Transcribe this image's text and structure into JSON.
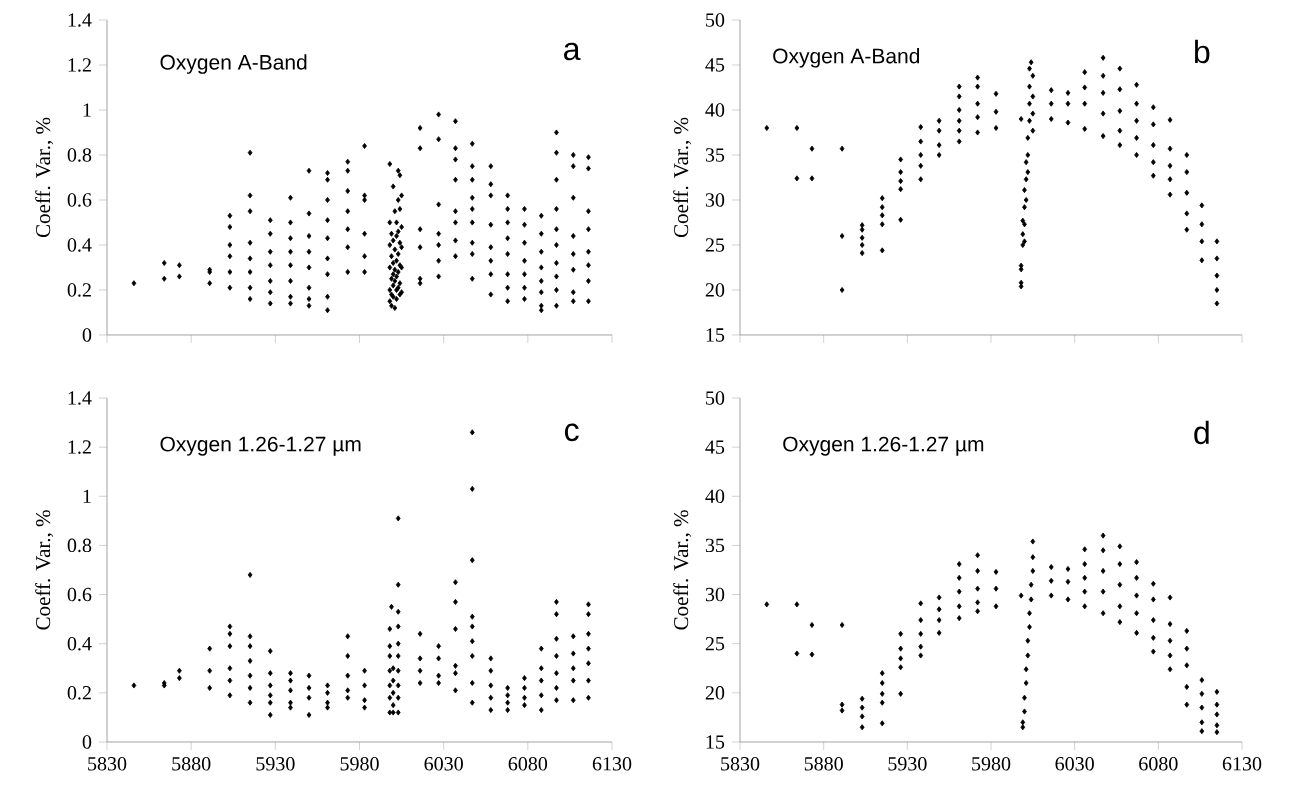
{
  "chart_data": [
    {
      "type": "scatter",
      "title": "Oxygen A-Band",
      "annotations": [
        "a"
      ],
      "ylabel": "Coeff. Var., %",
      "xlim": [
        5830,
        6130
      ],
      "xticks": [
        5830,
        5880,
        5930,
        5980,
        6030,
        6080,
        6130
      ],
      "ylim": [
        0,
        1.4
      ],
      "yticks": [
        0,
        0.2,
        0.4,
        0.6,
        0.8,
        1,
        1.2,
        1.4
      ],
      "tick_labels": "y",
      "marker": "diamond",
      "color": "#000000",
      "x": [
        5846,
        5864,
        5864,
        5873,
        5873,
        5891,
        5891,
        5891,
        5903,
        5903,
        5903,
        5903,
        5903,
        5903,
        5915,
        5915,
        5915,
        5915,
        5915,
        5915,
        5915,
        5915,
        5927,
        5927,
        5927,
        5927,
        5927,
        5927,
        5927,
        5939,
        5939,
        5939,
        5939,
        5939,
        5939,
        5939,
        5939,
        5950,
        5950,
        5950,
        5950,
        5950,
        5950,
        5950,
        5950,
        5961,
        5961,
        5961,
        5961,
        5961,
        5961,
        5961,
        5961,
        5961,
        5973,
        5973,
        5973,
        5973,
        5973,
        5973,
        5973,
        5983,
        5983,
        5983,
        5983,
        5983,
        5983,
        5998,
        5998,
        5998,
        5998,
        5998,
        5998,
        5999,
        5999,
        5999,
        5999,
        5999,
        6000,
        6000,
        6000,
        6000,
        6000,
        6000,
        6001,
        6001,
        6001,
        6001,
        6001,
        6002,
        6002,
        6002,
        6002,
        6002,
        6002,
        6003,
        6003,
        6003,
        6003,
        6003,
        6003,
        6004,
        6004,
        6004,
        6004,
        6004,
        6004,
        6005,
        6005,
        6005,
        6005,
        6005,
        6016,
        6016,
        6016,
        6016,
        6016,
        6016,
        6027,
        6027,
        6027,
        6027,
        6027,
        6027,
        6027,
        6037,
        6037,
        6037,
        6037,
        6037,
        6037,
        6037,
        6037,
        6047,
        6047,
        6047,
        6047,
        6047,
        6047,
        6047,
        6047,
        6047,
        6058,
        6058,
        6058,
        6058,
        6058,
        6058,
        6058,
        6058,
        6068,
        6068,
        6068,
        6068,
        6068,
        6068,
        6068,
        6068,
        6078,
        6078,
        6078,
        6078,
        6078,
        6078,
        6078,
        6088,
        6088,
        6088,
        6088,
        6088,
        6088,
        6088,
        6088,
        6097,
        6097,
        6097,
        6097,
        6097,
        6097,
        6097,
        6097,
        6097,
        6097,
        6107,
        6107,
        6107,
        6107,
        6107,
        6107,
        6107,
        6107,
        6116,
        6116,
        6116,
        6116,
        6116,
        6116,
        6116,
        6116
      ],
      "values": [
        0.23,
        0.32,
        0.25,
        0.31,
        0.26,
        0.29,
        0.28,
        0.23,
        0.53,
        0.48,
        0.4,
        0.35,
        0.28,
        0.21,
        0.81,
        0.62,
        0.55,
        0.41,
        0.34,
        0.28,
        0.21,
        0.16,
        0.51,
        0.45,
        0.37,
        0.31,
        0.24,
        0.19,
        0.14,
        0.61,
        0.5,
        0.43,
        0.37,
        0.31,
        0.24,
        0.17,
        0.14,
        0.73,
        0.54,
        0.44,
        0.37,
        0.3,
        0.21,
        0.16,
        0.13,
        0.72,
        0.69,
        0.6,
        0.51,
        0.43,
        0.34,
        0.27,
        0.17,
        0.11,
        0.77,
        0.73,
        0.64,
        0.55,
        0.47,
        0.39,
        0.28,
        0.84,
        0.62,
        0.6,
        0.45,
        0.35,
        0.28,
        0.76,
        0.5,
        0.4,
        0.3,
        0.2,
        0.15,
        0.45,
        0.35,
        0.25,
        0.18,
        0.13,
        0.66,
        0.42,
        0.32,
        0.27,
        0.22,
        0.17,
        0.55,
        0.38,
        0.29,
        0.24,
        0.12,
        0.5,
        0.44,
        0.33,
        0.26,
        0.2,
        0.16,
        0.73,
        0.6,
        0.46,
        0.36,
        0.28,
        0.21,
        0.71,
        0.56,
        0.41,
        0.31,
        0.23,
        0.18,
        0.62,
        0.48,
        0.39,
        0.3,
        0.19,
        0.92,
        0.83,
        0.47,
        0.39,
        0.25,
        0.23,
        0.98,
        0.87,
        0.58,
        0.45,
        0.4,
        0.33,
        0.26,
        0.95,
        0.83,
        0.78,
        0.69,
        0.55,
        0.5,
        0.42,
        0.35,
        0.85,
        0.75,
        0.69,
        0.61,
        0.56,
        0.5,
        0.41,
        0.36,
        0.25,
        0.75,
        0.67,
        0.62,
        0.49,
        0.39,
        0.33,
        0.27,
        0.18,
        0.62,
        0.56,
        0.5,
        0.43,
        0.36,
        0.27,
        0.21,
        0.15,
        0.56,
        0.49,
        0.41,
        0.33,
        0.27,
        0.21,
        0.16,
        0.53,
        0.45,
        0.37,
        0.3,
        0.24,
        0.19,
        0.13,
        0.11,
        0.9,
        0.81,
        0.69,
        0.56,
        0.47,
        0.4,
        0.32,
        0.26,
        0.2,
        0.13,
        0.8,
        0.75,
        0.61,
        0.44,
        0.36,
        0.29,
        0.19,
        0.15,
        0.79,
        0.74,
        0.55,
        0.47,
        0.37,
        0.31,
        0.24,
        0.15
      ]
    },
    {
      "type": "scatter",
      "title": "Oxygen A-Band",
      "annotations": [
        "b"
      ],
      "ylabel": "Coeff. Var., %",
      "xlim": [
        5830,
        6130
      ],
      "xticks": [
        5830,
        5880,
        5930,
        5980,
        6030,
        6080,
        6130
      ],
      "ylim": [
        15,
        50
      ],
      "yticks": [
        15,
        20,
        25,
        30,
        35,
        40,
        45,
        50
      ],
      "tick_labels": "y",
      "marker": "diamond",
      "color": "#000000",
      "x": [
        5846,
        5864,
        5864,
        5873,
        5873,
        5891,
        5891,
        5891,
        5903,
        5903,
        5903,
        5903,
        5903,
        5915,
        5915,
        5915,
        5915,
        5915,
        5926,
        5926,
        5926,
        5926,
        5926,
        5938,
        5938,
        5938,
        5938,
        5938,
        5949,
        5949,
        5949,
        5949,
        5961,
        5961,
        5961,
        5961,
        5961,
        5961,
        5972,
        5972,
        5972,
        5972,
        5972,
        5983,
        5983,
        5983,
        5998,
        5998,
        5998,
        5998,
        5998,
        5999,
        5999,
        5999,
        6000,
        6000,
        6000,
        6000,
        6001,
        6001,
        6001,
        6002,
        6002,
        6002,
        6003,
        6003,
        6003,
        6003,
        6004,
        6005,
        6005,
        6005,
        6005,
        6016,
        6016,
        6016,
        6026,
        6026,
        6026,
        6036,
        6036,
        6036,
        6036,
        6047,
        6047,
        6047,
        6047,
        6047,
        6057,
        6057,
        6057,
        6057,
        6057,
        6067,
        6067,
        6067,
        6067,
        6067,
        6077,
        6077,
        6077,
        6077,
        6077,
        6087,
        6087,
        6087,
        6087,
        6087,
        6097,
        6097,
        6097,
        6097,
        6097,
        6106,
        6106,
        6106,
        6106,
        6115,
        6115,
        6115,
        6115,
        6115
      ],
      "values": [
        38.0,
        38.0,
        32.4,
        35.7,
        32.4,
        35.7,
        26.0,
        20.0,
        27.2,
        26.7,
        25.8,
        25.0,
        24.1,
        30.2,
        29.2,
        28.3,
        27.3,
        24.4,
        34.5,
        33.1,
        32.1,
        31.2,
        27.8,
        38.1,
        36.5,
        35.0,
        33.8,
        32.3,
        38.8,
        37.7,
        36.1,
        35.0,
        42.6,
        41.5,
        40.0,
        38.8,
        37.7,
        36.5,
        43.6,
        42.6,
        40.7,
        39.2,
        37.5,
        41.8,
        39.8,
        38.0,
        39.0,
        22.7,
        22.3,
        20.8,
        20.4,
        25.0,
        26.2,
        27.7,
        25.4,
        27.3,
        29.2,
        31.1,
        30.0,
        32.3,
        34.2,
        33.1,
        35.0,
        36.9,
        38.8,
        40.7,
        42.6,
        44.6,
        45.3,
        43.8,
        41.5,
        39.6,
        37.7,
        42.2,
        40.7,
        39.0,
        41.9,
        40.7,
        38.6,
        44.2,
        42.5,
        40.7,
        37.9,
        45.8,
        43.8,
        41.9,
        39.6,
        37.1,
        44.6,
        42.3,
        39.9,
        37.7,
        36.1,
        42.8,
        40.7,
        38.8,
        36.9,
        35.0,
        40.3,
        38.4,
        36.1,
        34.2,
        32.7,
        38.9,
        35.7,
        33.8,
        32.3,
        30.6,
        35.0,
        33.1,
        30.8,
        28.5,
        26.7,
        29.4,
        27.3,
        25.4,
        23.3,
        25.4,
        23.5,
        21.6,
        20.0,
        18.5
      ]
    },
    {
      "type": "scatter",
      "title": "Oxygen 1.26-1.27 µm",
      "annotations": [
        "c"
      ],
      "ylabel": "Coeff. Var., %",
      "xlim": [
        5830,
        6130
      ],
      "xticks": [
        5830,
        5880,
        5930,
        5980,
        6030,
        6080,
        6130
      ],
      "ylim": [
        0,
        1.4
      ],
      "yticks": [
        0,
        0.2,
        0.4,
        0.6,
        0.8,
        1,
        1.2,
        1.4
      ],
      "marker": "diamond",
      "color": "#000000",
      "x": [
        5846,
        5864,
        5864,
        5873,
        5873,
        5891,
        5891,
        5891,
        5903,
        5903,
        5903,
        5903,
        5903,
        5903,
        5915,
        5915,
        5915,
        5915,
        5915,
        5915,
        5915,
        5927,
        5927,
        5927,
        5927,
        5927,
        5927,
        5939,
        5939,
        5939,
        5939,
        5939,
        5950,
        5950,
        5950,
        5950,
        5961,
        5961,
        5961,
        5961,
        5973,
        5973,
        5973,
        5973,
        5973,
        5983,
        5983,
        5983,
        5983,
        5998,
        5998,
        5998,
        5998,
        5998,
        5998,
        5998,
        5999,
        6000,
        6000,
        6000,
        6000,
        6000,
        6003,
        6003,
        6003,
        6003,
        6003,
        6003,
        6003,
        6003,
        6003,
        6003,
        6016,
        6016,
        6016,
        6016,
        6027,
        6027,
        6027,
        6027,
        6037,
        6037,
        6037,
        6037,
        6037,
        6037,
        6047,
        6047,
        6047,
        6047,
        6047,
        6047,
        6047,
        6047,
        6047,
        6058,
        6058,
        6058,
        6058,
        6058,
        6068,
        6068,
        6068,
        6068,
        6078,
        6078,
        6078,
        6078,
        6088,
        6088,
        6088,
        6088,
        6088,
        6097,
        6097,
        6097,
        6097,
        6097,
        6097,
        6097,
        6107,
        6107,
        6107,
        6107,
        6107,
        6116,
        6116,
        6116,
        6116,
        6116,
        6116,
        6116
      ],
      "values": [
        0.23,
        0.24,
        0.23,
        0.29,
        0.26,
        0.38,
        0.29,
        0.22,
        0.47,
        0.44,
        0.39,
        0.3,
        0.25,
        0.19,
        0.68,
        0.43,
        0.39,
        0.33,
        0.27,
        0.22,
        0.16,
        0.37,
        0.28,
        0.23,
        0.19,
        0.16,
        0.11,
        0.28,
        0.25,
        0.21,
        0.16,
        0.14,
        0.27,
        0.22,
        0.18,
        0.11,
        0.23,
        0.2,
        0.16,
        0.14,
        0.43,
        0.35,
        0.27,
        0.21,
        0.18,
        0.29,
        0.23,
        0.17,
        0.14,
        0.46,
        0.39,
        0.35,
        0.29,
        0.23,
        0.18,
        0.12,
        0.55,
        0.3,
        0.25,
        0.2,
        0.15,
        0.12,
        0.91,
        0.64,
        0.53,
        0.47,
        0.4,
        0.35,
        0.29,
        0.23,
        0.18,
        0.12,
        0.44,
        0.34,
        0.29,
        0.24,
        0.39,
        0.34,
        0.27,
        0.24,
        0.65,
        0.57,
        0.46,
        0.31,
        0.28,
        0.21,
        1.26,
        1.03,
        0.74,
        0.51,
        0.47,
        0.41,
        0.35,
        0.24,
        0.16,
        0.34,
        0.29,
        0.23,
        0.18,
        0.13,
        0.22,
        0.19,
        0.16,
        0.13,
        0.26,
        0.22,
        0.18,
        0.15,
        0.38,
        0.3,
        0.25,
        0.19,
        0.13,
        0.57,
        0.52,
        0.42,
        0.35,
        0.28,
        0.22,
        0.17,
        0.43,
        0.36,
        0.3,
        0.25,
        0.17,
        0.56,
        0.52,
        0.44,
        0.38,
        0.32,
        0.25,
        0.18
      ]
    },
    {
      "type": "scatter",
      "title": "Oxygen 1.26-1.27 µm",
      "annotations": [
        "d"
      ],
      "ylabel": "Coeff. Var., %",
      "xlim": [
        5830,
        6130
      ],
      "xticks": [
        5830,
        5880,
        5930,
        5980,
        6030,
        6080,
        6130
      ],
      "ylim": [
        15,
        50
      ],
      "yticks": [
        15,
        20,
        25,
        30,
        35,
        40,
        45,
        50
      ],
      "marker": "diamond",
      "color": "#000000",
      "x": [
        5846,
        5864,
        5864,
        5873,
        5873,
        5891,
        5891,
        5891,
        5903,
        5903,
        5903,
        5903,
        5915,
        5915,
        5915,
        5915,
        5915,
        5926,
        5926,
        5926,
        5926,
        5926,
        5938,
        5938,
        5938,
        5938,
        5938,
        5949,
        5949,
        5949,
        5949,
        5961,
        5961,
        5961,
        5961,
        5961,
        5972,
        5972,
        5972,
        5972,
        5972,
        5983,
        5983,
        5983,
        5998,
        5999,
        5999,
        6000,
        6000,
        6001,
        6001,
        6002,
        6002,
        6003,
        6003,
        6004,
        6004,
        6005,
        6005,
        6005,
        6016,
        6016,
        6016,
        6026,
        6026,
        6026,
        6036,
        6036,
        6036,
        6036,
        6036,
        6047,
        6047,
        6047,
        6047,
        6047,
        6057,
        6057,
        6057,
        6057,
        6057,
        6067,
        6067,
        6067,
        6067,
        6067,
        6077,
        6077,
        6077,
        6077,
        6077,
        6087,
        6087,
        6087,
        6087,
        6087,
        6097,
        6097,
        6097,
        6097,
        6097,
        6106,
        6106,
        6106,
        6106,
        6106,
        6115,
        6115,
        6115,
        6115,
        6115
      ],
      "values": [
        29.0,
        29.0,
        24.0,
        26.9,
        23.9,
        26.9,
        18.8,
        18.2,
        19.4,
        18.5,
        17.6,
        16.5,
        22.0,
        21.0,
        19.9,
        19.0,
        16.9,
        26.0,
        24.5,
        23.5,
        22.6,
        19.9,
        29.1,
        27.4,
        26.0,
        24.7,
        23.8,
        29.7,
        28.5,
        27.4,
        26.1,
        33.1,
        31.7,
        30.3,
        28.8,
        27.6,
        34.0,
        32.4,
        30.6,
        29.2,
        28.3,
        32.3,
        30.6,
        28.8,
        29.9,
        16.5,
        17.0,
        18.1,
        19.5,
        21.0,
        22.4,
        23.8,
        25.3,
        26.7,
        28.1,
        29.5,
        31.0,
        32.4,
        33.8,
        35.4,
        32.8,
        31.4,
        29.9,
        32.6,
        31.3,
        29.5,
        34.6,
        33.1,
        31.7,
        30.3,
        28.8,
        36.0,
        34.5,
        32.4,
        30.3,
        28.1,
        34.9,
        33.1,
        31.0,
        28.8,
        27.2,
        33.3,
        31.7,
        29.9,
        28.1,
        26.1,
        31.1,
        29.5,
        27.4,
        25.6,
        24.2,
        29.7,
        27.0,
        25.3,
        23.8,
        22.4,
        26.3,
        24.5,
        22.8,
        20.6,
        18.8,
        21.3,
        19.9,
        18.5,
        17.0,
        16.1,
        20.1,
        18.8,
        17.8,
        16.7,
        16.0
      ]
    }
  ]
}
